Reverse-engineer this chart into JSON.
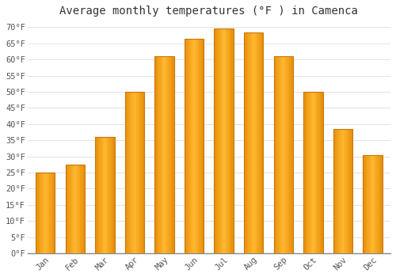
{
  "title": "Average monthly temperatures (°F ) in Camenca",
  "months": [
    "Jan",
    "Feb",
    "Mar",
    "Apr",
    "May",
    "Jun",
    "Jul",
    "Aug",
    "Sep",
    "Oct",
    "Nov",
    "Dec"
  ],
  "values": [
    25,
    27.5,
    36,
    50,
    61,
    66.5,
    69.5,
    68.5,
    61,
    50,
    38.5,
    30.5
  ],
  "bar_color_left": "#E8900A",
  "bar_color_center": "#FFB830",
  "bar_color_right": "#E8900A",
  "bar_edge_color": "#C8780A",
  "ylim": [
    0,
    72
  ],
  "yticks": [
    0,
    5,
    10,
    15,
    20,
    25,
    30,
    35,
    40,
    45,
    50,
    55,
    60,
    65,
    70
  ],
  "background_color": "#FFFFFF",
  "grid_color": "#DDDDDD",
  "title_fontsize": 10,
  "tick_fontsize": 7.5,
  "font_family": "monospace"
}
